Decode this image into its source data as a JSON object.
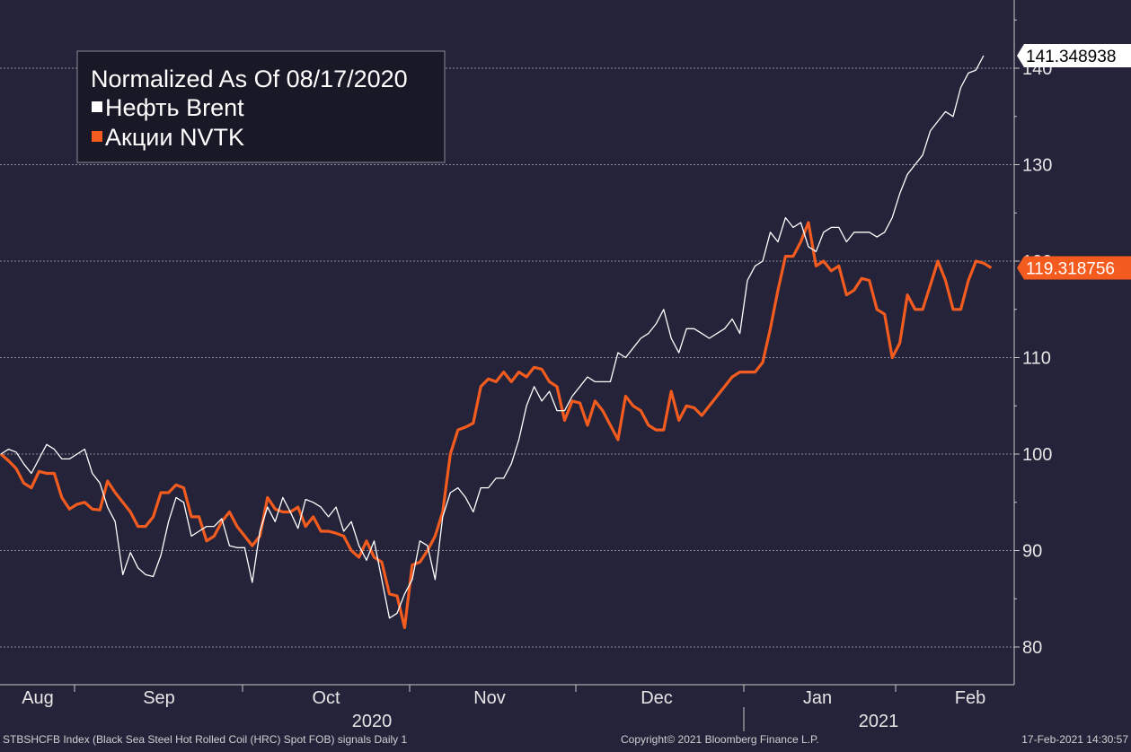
{
  "chart_data": {
    "type": "line",
    "title": "Normalized As Of 08/17/2020",
    "legend_position": "top-left",
    "grid": true,
    "y_axis_side": "right",
    "ylim": [
      77,
      147
    ],
    "y_ticks": [
      80,
      90,
      100,
      110,
      120,
      130,
      140
    ],
    "x_month_labels": [
      "Aug",
      "Sep",
      "Oct",
      "Nov",
      "Dec",
      "Jan",
      "Feb"
    ],
    "x_year_labels": [
      "2020",
      "2021"
    ],
    "series": [
      {
        "name": "Нефть Brent",
        "color": "#ffffff",
        "last_value_label": "141.348938",
        "points": [
          [
            0,
            100
          ],
          [
            1,
            100.5
          ],
          [
            2,
            100.2
          ],
          [
            3,
            99
          ],
          [
            4,
            98
          ],
          [
            5,
            99.5
          ],
          [
            6,
            101
          ],
          [
            7,
            100.5
          ],
          [
            8,
            99.5
          ],
          [
            9,
            99.5
          ],
          [
            10,
            100
          ],
          [
            11,
            100.5
          ],
          [
            12,
            98
          ],
          [
            13,
            97
          ],
          [
            14,
            94.5
          ],
          [
            15,
            93
          ],
          [
            16,
            87.5
          ],
          [
            17,
            89.8
          ],
          [
            18,
            88.2
          ],
          [
            19,
            87.5
          ],
          [
            20,
            87.3
          ],
          [
            21,
            89.5
          ],
          [
            22,
            93
          ],
          [
            23,
            95.5
          ],
          [
            24,
            95
          ],
          [
            25,
            91.5
          ],
          [
            26,
            92
          ],
          [
            27,
            92.5
          ],
          [
            28,
            92.5
          ],
          [
            29,
            93.3
          ],
          [
            30,
            90.5
          ],
          [
            31,
            90.3
          ],
          [
            32,
            90.3
          ],
          [
            33,
            86.7
          ],
          [
            34,
            92
          ],
          [
            35,
            94.5
          ],
          [
            36,
            93
          ],
          [
            37,
            95.5
          ],
          [
            38,
            94
          ],
          [
            39,
            92.3
          ],
          [
            40,
            95.3
          ],
          [
            41,
            95
          ],
          [
            42,
            94.5
          ],
          [
            43,
            93.5
          ],
          [
            44,
            94.5
          ],
          [
            45,
            92
          ],
          [
            46,
            93
          ],
          [
            47,
            90.5
          ],
          [
            48,
            89
          ],
          [
            49,
            91
          ],
          [
            50,
            87
          ],
          [
            51,
            83
          ],
          [
            52,
            83.5
          ],
          [
            53,
            85.5
          ],
          [
            54,
            87
          ],
          [
            55,
            91
          ],
          [
            56,
            90.5
          ],
          [
            57,
            87
          ],
          [
            58,
            93.5
          ],
          [
            59,
            96
          ],
          [
            60,
            96.5
          ],
          [
            61,
            95.5
          ],
          [
            62,
            94
          ],
          [
            63,
            96.5
          ],
          [
            64,
            96.5
          ],
          [
            65,
            97.5
          ],
          [
            66,
            97.5
          ],
          [
            67,
            99
          ],
          [
            68,
            101.5
          ],
          [
            69,
            105
          ],
          [
            70,
            107
          ],
          [
            71,
            105.5
          ],
          [
            72,
            106.5
          ],
          [
            73,
            104.5
          ],
          [
            74,
            104.5
          ],
          [
            75,
            106
          ],
          [
            76,
            107
          ],
          [
            77,
            108
          ],
          [
            78,
            107.5
          ],
          [
            79,
            107.5
          ],
          [
            80,
            107.5
          ],
          [
            81,
            110.5
          ],
          [
            82,
            110
          ],
          [
            83,
            111
          ],
          [
            84,
            112
          ],
          [
            85,
            112.5
          ],
          [
            86,
            113.5
          ],
          [
            87,
            115
          ],
          [
            88,
            112
          ],
          [
            89,
            110.5
          ],
          [
            90,
            113
          ],
          [
            91,
            113
          ],
          [
            92,
            112.5
          ],
          [
            93,
            112
          ],
          [
            94,
            112.5
          ],
          [
            95,
            113
          ],
          [
            96,
            114
          ],
          [
            97,
            112.5
          ],
          [
            98,
            118
          ],
          [
            99,
            119.5
          ],
          [
            100,
            120
          ],
          [
            101,
            123
          ],
          [
            102,
            122
          ],
          [
            103,
            124.5
          ],
          [
            104,
            123.5
          ],
          [
            105,
            124
          ],
          [
            106,
            121.5
          ],
          [
            107,
            121
          ],
          [
            108,
            123
          ],
          [
            109,
            123.5
          ],
          [
            110,
            123.5
          ],
          [
            111,
            122
          ],
          [
            112,
            123
          ],
          [
            113,
            123
          ],
          [
            114,
            123
          ],
          [
            115,
            122.5
          ],
          [
            116,
            123
          ],
          [
            117,
            124.5
          ],
          [
            118,
            127
          ],
          [
            119,
            129
          ],
          [
            120,
            130
          ],
          [
            121,
            131
          ],
          [
            122,
            133.5
          ],
          [
            123,
            134.5
          ],
          [
            124,
            135.5
          ],
          [
            125,
            135
          ],
          [
            126,
            138
          ],
          [
            127,
            139.5
          ],
          [
            128,
            139.8
          ],
          [
            129,
            141.3
          ]
        ]
      },
      {
        "name": "Акции NVTK",
        "color": "#f45b1e",
        "last_value_label": "119.318756",
        "points": [
          [
            0,
            100
          ],
          [
            1,
            99.3
          ],
          [
            2,
            98.5
          ],
          [
            3,
            97
          ],
          [
            4,
            96.5
          ],
          [
            5,
            98.2
          ],
          [
            6,
            98
          ],
          [
            7,
            98
          ],
          [
            8,
            95.5
          ],
          [
            9,
            94.3
          ],
          [
            10,
            94.8
          ],
          [
            11,
            95
          ],
          [
            12,
            94.3
          ],
          [
            13,
            94.2
          ],
          [
            14,
            97.2
          ],
          [
            15,
            96
          ],
          [
            16,
            95
          ],
          [
            17,
            94
          ],
          [
            18,
            92.5
          ],
          [
            19,
            92.5
          ],
          [
            20,
            93.5
          ],
          [
            21,
            96
          ],
          [
            22,
            96
          ],
          [
            23,
            96.8
          ],
          [
            24,
            96.5
          ],
          [
            25,
            93.5
          ],
          [
            26,
            93.5
          ],
          [
            27,
            91
          ],
          [
            28,
            91.5
          ],
          [
            29,
            93
          ],
          [
            30,
            94
          ],
          [
            31,
            92.5
          ],
          [
            32,
            91.5
          ],
          [
            33,
            90.5
          ],
          [
            34,
            91.5
          ],
          [
            35,
            95.5
          ],
          [
            36,
            94.3
          ],
          [
            37,
            94
          ],
          [
            38,
            94
          ],
          [
            39,
            94.5
          ],
          [
            40,
            92.5
          ],
          [
            41,
            93.5
          ],
          [
            42,
            92
          ],
          [
            43,
            92
          ],
          [
            44,
            91.8
          ],
          [
            45,
            91.5
          ],
          [
            46,
            90
          ],
          [
            47,
            89.3
          ],
          [
            48,
            91
          ],
          [
            49,
            89.3
          ],
          [
            50,
            88.8
          ],
          [
            51,
            85.5
          ],
          [
            52,
            85.3
          ],
          [
            53,
            82
          ],
          [
            54,
            88.5
          ],
          [
            55,
            88.8
          ],
          [
            56,
            90
          ],
          [
            57,
            91.5
          ],
          [
            58,
            94
          ],
          [
            59,
            100
          ],
          [
            60,
            102.5
          ],
          [
            61,
            102.8
          ],
          [
            62,
            103.2
          ],
          [
            63,
            107
          ],
          [
            64,
            107.8
          ],
          [
            65,
            107.5
          ],
          [
            66,
            108.5
          ],
          [
            67,
            107.5
          ],
          [
            68,
            108.5
          ],
          [
            69,
            108
          ],
          [
            70,
            109
          ],
          [
            71,
            108.8
          ],
          [
            72,
            107.5
          ],
          [
            73,
            107
          ],
          [
            74,
            103.5
          ],
          [
            75,
            105.5
          ],
          [
            76,
            105.3
          ],
          [
            77,
            103
          ],
          [
            78,
            105.5
          ],
          [
            79,
            104.5
          ],
          [
            80,
            103
          ],
          [
            81,
            101.5
          ],
          [
            82,
            106
          ],
          [
            83,
            105
          ],
          [
            84,
            104.5
          ],
          [
            85,
            103
          ],
          [
            86,
            102.5
          ],
          [
            87,
            102.5
          ],
          [
            88,
            106.5
          ],
          [
            89,
            103.5
          ],
          [
            90,
            105
          ],
          [
            91,
            104.8
          ],
          [
            92,
            104
          ],
          [
            93,
            105
          ],
          [
            94,
            106
          ],
          [
            95,
            107
          ],
          [
            96,
            108
          ],
          [
            97,
            108.5
          ],
          [
            98,
            108.5
          ],
          [
            99,
            108.5
          ],
          [
            100,
            109.5
          ],
          [
            101,
            113
          ],
          [
            102,
            117
          ],
          [
            103,
            120.5
          ],
          [
            104,
            120.5
          ],
          [
            105,
            122
          ],
          [
            106,
            124
          ],
          [
            107,
            119.5
          ],
          [
            108,
            120
          ],
          [
            109,
            119
          ],
          [
            110,
            119.5
          ],
          [
            111,
            116.5
          ],
          [
            112,
            117
          ],
          [
            113,
            118.2
          ],
          [
            114,
            118
          ],
          [
            115,
            115
          ],
          [
            116,
            114.5
          ],
          [
            117,
            110
          ],
          [
            118,
            111.5
          ],
          [
            119,
            116.5
          ],
          [
            120,
            115
          ],
          [
            121,
            115
          ],
          [
            122,
            117.5
          ],
          [
            123,
            120
          ],
          [
            124,
            118
          ],
          [
            125,
            115
          ],
          [
            126,
            115
          ],
          [
            127,
            118
          ],
          [
            128,
            120
          ],
          [
            129,
            119.8
          ],
          [
            130,
            119.3
          ]
        ]
      }
    ]
  },
  "footer": {
    "left": "STBSHCFB Index (Black Sea Steel Hot Rolled Coil (HRC) Spot FOB) signals  Daily 1",
    "center": "Copyright© 2021 Bloomberg Finance L.P.",
    "right": "17-Feb-2021 14:30:57"
  }
}
